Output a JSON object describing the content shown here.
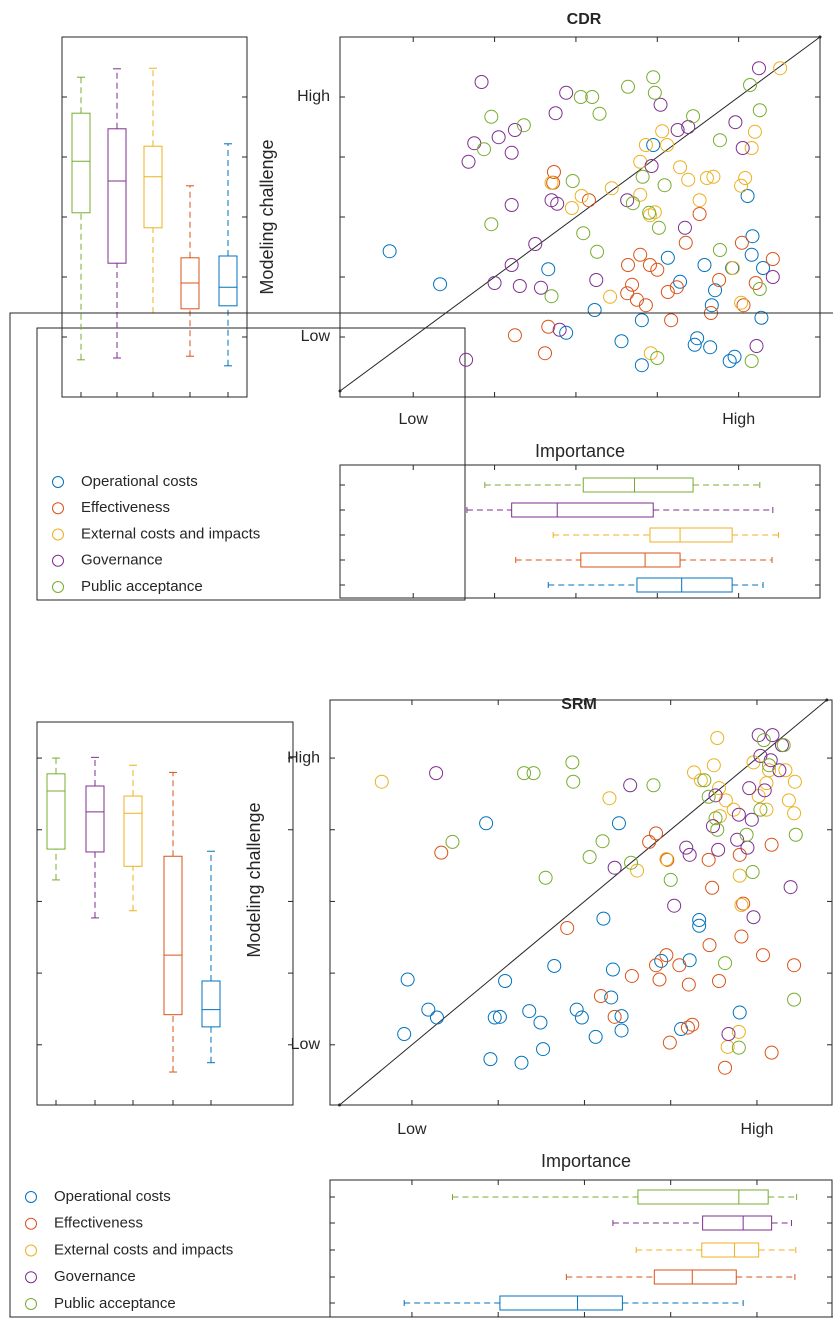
{
  "chart_data": [
    {
      "type": "scatter-box",
      "title": "CDR",
      "xlabel": "Importance",
      "ylabel": "Modeling challenge",
      "xlim": [
        0.1,
        6
      ],
      "ylim": [
        0,
        6
      ],
      "xticks": [
        {
          "value": 1,
          "label": "Low"
        },
        {
          "value": 5,
          "label": "High"
        }
      ],
      "xminor_ticks": [
        2,
        3,
        4
      ],
      "yticks": [
        {
          "value": 1,
          "label": "Low"
        },
        {
          "value": 5,
          "label": "High"
        }
      ],
      "yminor_ticks": [
        2,
        3,
        4
      ],
      "diagonal": true,
      "series": [
        {
          "name": "Operational costs",
          "color": "#0072BD",
          "x": [
            0.71,
            1.33,
            2.66,
            2.88,
            3.23,
            3.56,
            3.81,
            3.81,
            4.46,
            4.49,
            4.65,
            4.58,
            4.67,
            4.71,
            4.92,
            5.11,
            5.17,
            5.16,
            5.3,
            5.28,
            4.95,
            4.89,
            4.28,
            4.13,
            3.95
          ],
          "y": [
            2.43,
            1.88,
            2.13,
            1.07,
            1.45,
            0.93,
            1.28,
            0.53,
            0.87,
            0.98,
            0.83,
            2.2,
            1.53,
            1.78,
            2.15,
            3.35,
            2.68,
            2.37,
            2.15,
            1.32,
            0.67,
            0.6,
            1.92,
            2.32,
            4.2
          ],
          "box_y": [
            0.52,
            1.52,
            1.83,
            2.35,
            4.22
          ],
          "box_x": [
            2.66,
            3.75,
            4.3,
            4.92,
            5.3
          ]
        },
        {
          "name": "Effectiveness",
          "color": "#D95319",
          "x": [
            2.73,
            2.72,
            3.16,
            2.25,
            2.66,
            2.62,
            3.64,
            3.63,
            3.69,
            3.79,
            3.86,
            3.91,
            4.0,
            3.75,
            4.13,
            4.24,
            4.35,
            4.52,
            5.04,
            5.06,
            5.42,
            5.21,
            4.76,
            4.66,
            4.17
          ],
          "y": [
            3.75,
            3.57,
            3.28,
            1.03,
            1.17,
            0.73,
            2.2,
            1.73,
            1.87,
            2.37,
            1.53,
            2.2,
            2.12,
            1.62,
            1.75,
            1.83,
            2.57,
            3.05,
            2.57,
            1.53,
            2.3,
            1.9,
            1.95,
            1.4,
            1.28
          ],
          "box_y": [
            0.68,
            1.47,
            1.9,
            2.32,
            3.52
          ],
          "box_x": [
            2.26,
            3.06,
            3.85,
            4.28,
            5.41
          ]
        },
        {
          "name": "External costs and impacts",
          "color": "#EDB120",
          "x": [
            5.51,
            5.2,
            5.16,
            5.08,
            5.03,
            4.69,
            4.61,
            4.52,
            4.38,
            4.28,
            4.06,
            4.12,
            3.86,
            3.79,
            3.97,
            3.91,
            3.79,
            3.44,
            3.07,
            2.95,
            2.7,
            4.93,
            5.03,
            3.92,
            3.42
          ],
          "y": [
            5.48,
            4.42,
            4.15,
            3.65,
            3.52,
            3.67,
            3.65,
            3.28,
            3.62,
            3.83,
            4.43,
            4.2,
            4.2,
            3.92,
            3.08,
            3.03,
            3.37,
            3.48,
            3.35,
            3.15,
            3.57,
            2.15,
            1.57,
            0.73,
            1.67
          ],
          "box_y": [
            1.4,
            2.82,
            3.67,
            4.18,
            5.48
          ],
          "box_x": [
            2.72,
            3.91,
            4.28,
            4.92,
            5.49
          ]
        },
        {
          "name": "Governance",
          "color": "#7E2F8E",
          "x": [
            1.84,
            2.88,
            2.75,
            2.05,
            2.25,
            2.21,
            1.75,
            1.68,
            2.21,
            2.7,
            2.77,
            2.5,
            2.21,
            2.0,
            2.31,
            3.25,
            1.65,
            4.04,
            4.25,
            4.38,
            3.93,
            4.34,
            5.25,
            4.96,
            5.05,
            5.42,
            5.22,
            2.8,
            3.63,
            2.57
          ],
          "y": [
            5.25,
            5.07,
            4.73,
            4.33,
            4.45,
            4.07,
            4.23,
            3.92,
            3.2,
            3.28,
            3.22,
            2.55,
            2.2,
            1.9,
            1.85,
            1.95,
            0.62,
            4.87,
            4.45,
            4.5,
            3.85,
            2.82,
            5.48,
            4.58,
            4.15,
            2.0,
            0.85,
            1.12,
            3.28,
            1.82
          ],
          "box_y": [
            0.65,
            2.23,
            3.6,
            4.47,
            5.47
          ],
          "box_x": [
            1.66,
            2.21,
            2.77,
            3.95,
            5.42
          ]
        },
        {
          "name": "Public acceptance",
          "color": "#77AC30",
          "x": [
            3.95,
            3.97,
            3.64,
            3.2,
            3.06,
            3.29,
            1.96,
            1.87,
            2.36,
            4.44,
            4.77,
            5.26,
            5.14,
            4.09,
            3.82,
            3.7,
            3.9,
            2.96,
            1.96,
            3.09,
            3.26,
            4.77,
            2.7,
            5.26,
            5.16,
            4.0,
            4.02
          ],
          "y": [
            5.33,
            5.07,
            5.17,
            5.0,
            5.0,
            4.72,
            4.67,
            4.13,
            4.53,
            4.68,
            4.28,
            4.78,
            5.2,
            3.53,
            3.67,
            3.23,
            3.07,
            3.6,
            2.88,
            2.73,
            2.42,
            2.45,
            1.68,
            1.8,
            0.6,
            0.65,
            2.82
          ],
          "box_y": [
            0.62,
            3.07,
            3.93,
            4.73,
            5.33
          ],
          "box_x": [
            1.88,
            3.09,
            3.72,
            4.44,
            5.26
          ]
        }
      ]
    },
    {
      "type": "scatter-box",
      "title": "SRM",
      "xlabel": "Importance",
      "ylabel": "Modeling challenge",
      "xlim": [
        0.05,
        5.87
      ],
      "ylim": [
        0.16,
        5.81
      ],
      "xticks": [
        {
          "value": 1,
          "label": "Low"
        },
        {
          "value": 5,
          "label": "High"
        }
      ],
      "xminor_ticks": [
        2,
        3,
        4
      ],
      "yticks": [
        {
          "value": 1,
          "label": "Low"
        },
        {
          "value": 5,
          "label": "High"
        }
      ],
      "yminor_ticks": [
        2,
        3,
        4
      ],
      "diagonal": true,
      "series": [
        {
          "name": "Operational costs",
          "color": "#0072BD",
          "x": [
            0.91,
            0.95,
            1.19,
            1.29,
            1.86,
            1.91,
            1.96,
            2.02,
            2.08,
            2.27,
            2.36,
            2.49,
            2.52,
            2.65,
            2.91,
            2.97,
            3.13,
            3.22,
            3.31,
            3.33,
            3.4,
            3.43,
            3.43,
            3.89,
            4.22,
            4.33,
            4.33,
            4.12,
            4.8
          ],
          "y": [
            1.15,
            1.91,
            1.49,
            1.38,
            4.09,
            0.8,
            1.38,
            1.39,
            1.89,
            0.75,
            1.47,
            1.31,
            0.94,
            2.1,
            1.49,
            1.38,
            1.11,
            2.76,
            1.66,
            2.05,
            4.09,
            1.2,
            1.4,
            2.17,
            2.18,
            2.74,
            2.66,
            1.22,
            1.45
          ],
          "box_y": [
            0.75,
            1.25,
            1.49,
            1.89,
            3.7
          ],
          "box_x": [
            0.91,
            2.02,
            2.92,
            3.44,
            4.84
          ]
        },
        {
          "name": "Effectiveness",
          "color": "#D95319",
          "x": [
            1.34,
            2.8,
            3.19,
            3.35,
            3.55,
            3.75,
            3.83,
            3.96,
            3.83,
            3.87,
            3.95,
            4.1,
            4.21,
            3.99,
            4.2,
            4.25,
            4.48,
            4.44,
            4.45,
            4.56,
            4.63,
            4.8,
            4.82,
            4.84,
            5.07,
            5.17,
            5.17,
            5.43
          ],
          "y": [
            3.68,
            2.63,
            1.68,
            1.39,
            1.96,
            3.83,
            3.95,
            3.58,
            2.11,
            1.91,
            2.25,
            2.11,
            1.84,
            1.03,
            1.24,
            1.28,
            3.19,
            3.58,
            2.39,
            1.89,
            0.68,
            3.65,
            2.51,
            2.97,
            2.25,
            0.89,
            3.79,
            2.11
          ],
          "box_y": [
            0.62,
            1.42,
            2.25,
            3.63,
            4.8
          ],
          "box_x": [
            2.79,
            3.81,
            4.25,
            4.76,
            5.44
          ]
        },
        {
          "name": "External costs and impacts",
          "color": "#EDB120",
          "x": [
            0.65,
            3.29,
            3.61,
            3.95,
            4.27,
            4.35,
            4.5,
            4.54,
            4.56,
            4.64,
            4.73,
            4.8,
            4.82,
            4.79,
            4.66,
            5.02,
            5.11,
            5.14,
            5.11,
            5.33,
            5.37,
            5.44,
            4.96,
            4.57,
            5.43
          ],
          "y": [
            4.67,
            4.44,
            3.43,
            3.59,
            4.8,
            4.69,
            4.9,
            5.28,
            4.58,
            4.41,
            4.28,
            3.36,
            2.95,
            1.18,
            0.97,
            4.47,
            4.65,
            4.83,
            4.28,
            4.83,
            4.41,
            4.67,
            4.94,
            4.19,
            4.23
          ],
          "box_y": [
            2.87,
            3.49,
            4.23,
            4.47,
            4.9
          ],
          "box_x": [
            3.6,
            4.36,
            4.74,
            5.02,
            5.45
          ]
        },
        {
          "name": "Governance",
          "color": "#7E2F8E",
          "x": [
            1.28,
            3.35,
            3.53,
            4.04,
            4.18,
            4.22,
            4.49,
            4.52,
            4.55,
            4.77,
            4.79,
            4.89,
            4.94,
            5.04,
            5.09,
            5.16,
            5.18,
            5.26,
            5.29,
            4.96,
            5.39,
            4.67,
            5.02,
            4.91
          ],
          "y": [
            4.79,
            3.47,
            4.62,
            2.94,
            3.75,
            3.65,
            4.05,
            4.48,
            3.72,
            3.86,
            4.21,
            3.75,
            4.14,
            5.03,
            4.55,
            4.97,
            5.32,
            4.83,
            5.18,
            2.78,
            3.2,
            1.15,
            5.32,
            4.58
          ],
          "box_y": [
            2.77,
            3.69,
            4.25,
            4.61,
            5.01
          ],
          "box_x": [
            3.33,
            4.37,
            4.84,
            5.17,
            5.4
          ]
        },
        {
          "name": "Public acceptance",
          "color": "#77AC30",
          "x": [
            1.47,
            2.3,
            2.41,
            2.86,
            2.87,
            2.55,
            3.06,
            3.21,
            3.54,
            3.8,
            4.0,
            4.39,
            4.44,
            4.52,
            4.54,
            4.63,
            4.79,
            4.88,
            4.95,
            5.04,
            5.08,
            5.14,
            5.43,
            5.45,
            5.31
          ],
          "y": [
            3.83,
            4.79,
            4.79,
            4.94,
            4.67,
            3.33,
            3.62,
            3.84,
            3.54,
            4.62,
            3.3,
            4.69,
            4.46,
            4.16,
            4.0,
            2.14,
            0.96,
            3.93,
            3.41,
            4.28,
            5.25,
            4.9,
            1.63,
            3.93,
            5.18
          ],
          "box_y": [
            3.3,
            3.73,
            4.54,
            4.78,
            5.0
          ],
          "box_x": [
            1.47,
            3.62,
            4.79,
            5.13,
            5.46
          ]
        }
      ]
    }
  ]
}
